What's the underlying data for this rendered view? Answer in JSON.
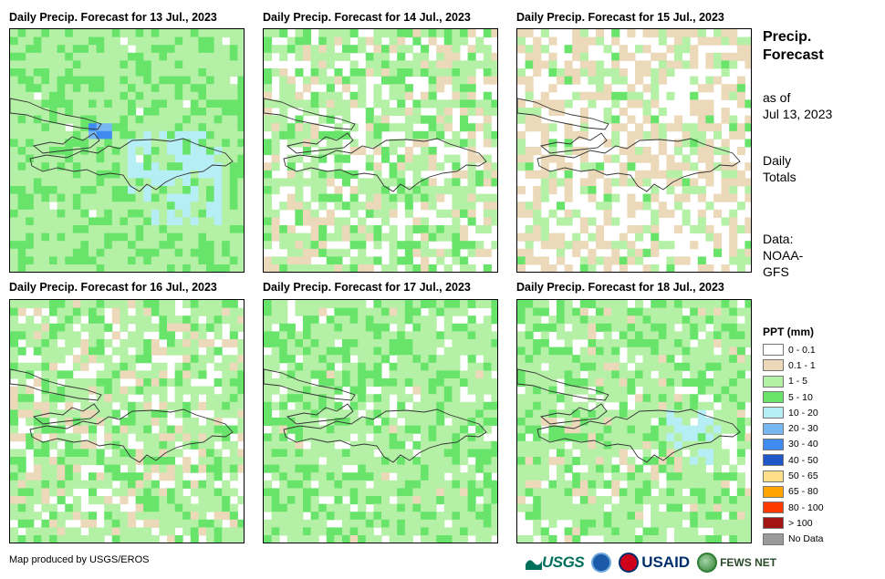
{
  "panels": [
    {
      "title": "Daily Precip. Forecast for 13 Jul., 2023",
      "wet": 0.88
    },
    {
      "title": "Daily Precip. Forecast for 14 Jul., 2023",
      "wet": 0.45
    },
    {
      "title": "Daily Precip. Forecast for 15 Jul., 2023",
      "wet": 0.12
    },
    {
      "title": "Daily Precip. Forecast for 16 Jul., 2023",
      "wet": 0.55
    },
    {
      "title": "Daily Precip. Forecast for 17 Jul., 2023",
      "wet": 0.78
    },
    {
      "title": "Daily Precip. Forecast for 18 Jul., 2023",
      "wet": 0.68
    }
  ],
  "side": {
    "title_line1": "Precip.",
    "title_line2": "Forecast",
    "asof_line1": "as of",
    "asof_line2": "Jul 13, 2023",
    "totals_line1": "Daily",
    "totals_line2": "Totals",
    "data_line1": "Data:",
    "data_line2": "NOAA-",
    "data_line3": "GFS"
  },
  "legend": {
    "title": "PPT (mm)",
    "items": [
      {
        "label": "0 - 0.1",
        "color": "#ffffff"
      },
      {
        "label": "0.1 - 1",
        "color": "#ecd9b9"
      },
      {
        "label": "1 - 5",
        "color": "#b4f0a6"
      },
      {
        "label": "5 - 10",
        "color": "#68e46b"
      },
      {
        "label": "10 - 20",
        "color": "#b5eef4"
      },
      {
        "label": "20 - 30",
        "color": "#77b7f2"
      },
      {
        "label": "30 - 40",
        "color": "#3f8bef"
      },
      {
        "label": "40 - 50",
        "color": "#1f57c9"
      },
      {
        "label": "50 - 65",
        "color": "#ffe08a"
      },
      {
        "label": "65 - 80",
        "color": "#ffa500"
      },
      {
        "label": "80 - 100",
        "color": "#ff3a00"
      },
      {
        "label": "> 100",
        "color": "#a31515"
      },
      {
        "label": "No Data",
        "color": "#9a9a9a"
      }
    ]
  },
  "credit": "Map produced by USGS/EROS",
  "logos": {
    "usgs": "USGS",
    "usaid": "USAID",
    "fews": "FEWS NET"
  }
}
